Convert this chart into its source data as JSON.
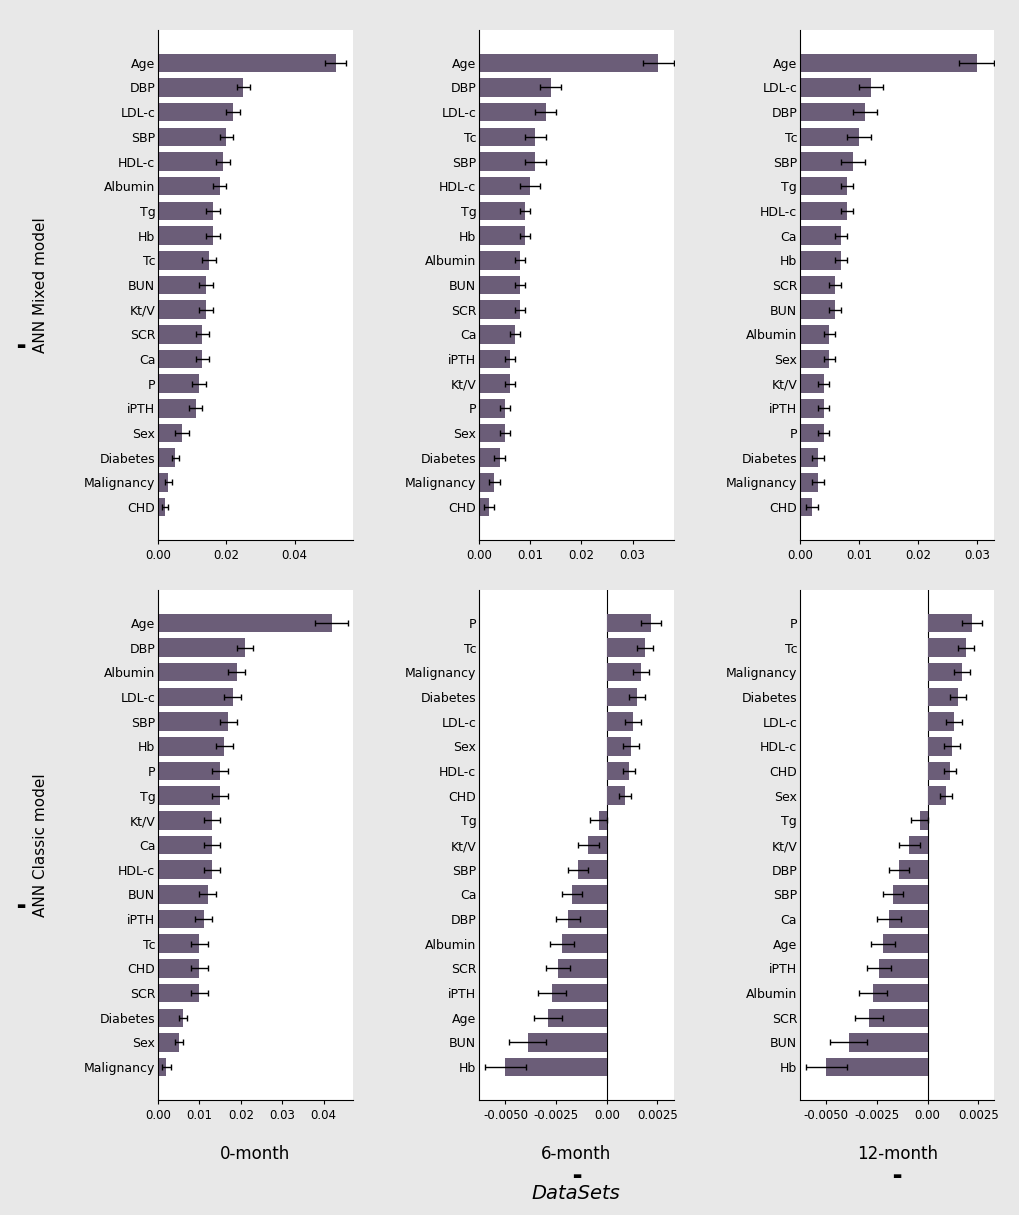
{
  "bar_color": "#6b5d78",
  "fig_bg": "#e8e8e8",
  "subplot_bg": "#ffffff",
  "mixed_0month": {
    "labels": [
      "Age",
      "DBP",
      "LDL-c",
      "SBP",
      "HDL-c",
      "Albumin",
      "Tg",
      "Hb",
      "Tc",
      "BUN",
      "Kt/V",
      "SCR",
      "Ca",
      "P",
      "iPTH",
      "Sex",
      "Diabetes",
      "Malignancy",
      "CHD"
    ],
    "values": [
      0.052,
      0.025,
      0.022,
      0.02,
      0.019,
      0.018,
      0.016,
      0.016,
      0.015,
      0.014,
      0.014,
      0.013,
      0.013,
      0.012,
      0.011,
      0.007,
      0.005,
      0.003,
      0.002
    ],
    "errors": [
      0.003,
      0.002,
      0.002,
      0.002,
      0.002,
      0.002,
      0.002,
      0.002,
      0.002,
      0.002,
      0.002,
      0.002,
      0.002,
      0.002,
      0.002,
      0.002,
      0.001,
      0.001,
      0.001
    ],
    "xlim": [
      0.0,
      0.057
    ],
    "xticks": [
      0.0,
      0.02,
      0.04
    ]
  },
  "mixed_6month": {
    "labels": [
      "Age",
      "DBP",
      "LDL-c",
      "Tc",
      "SBP",
      "HDL-c",
      "Tg",
      "Hb",
      "Albumin",
      "BUN",
      "SCR",
      "Ca",
      "iPTH",
      "Kt/V",
      "P",
      "Sex",
      "Diabetes",
      "Malignancy",
      "CHD"
    ],
    "values": [
      0.035,
      0.014,
      0.013,
      0.011,
      0.011,
      0.01,
      0.009,
      0.009,
      0.008,
      0.008,
      0.008,
      0.007,
      0.006,
      0.006,
      0.005,
      0.005,
      0.004,
      0.003,
      0.002
    ],
    "errors": [
      0.003,
      0.002,
      0.002,
      0.002,
      0.002,
      0.002,
      0.001,
      0.001,
      0.001,
      0.001,
      0.001,
      0.001,
      0.001,
      0.001,
      0.001,
      0.001,
      0.001,
      0.001,
      0.001
    ],
    "xlim": [
      0.0,
      0.038
    ],
    "xticks": [
      0.0,
      0.01,
      0.02,
      0.03
    ]
  },
  "mixed_12month": {
    "labels": [
      "Age",
      "LDL-c",
      "DBP",
      "Tc",
      "SBP",
      "Tg",
      "HDL-c",
      "Ca",
      "Hb",
      "SCR",
      "BUN",
      "Albumin",
      "Sex",
      "Kt/V",
      "iPTH",
      "P",
      "Diabetes",
      "Malignancy",
      "CHD"
    ],
    "values": [
      0.03,
      0.012,
      0.011,
      0.01,
      0.009,
      0.008,
      0.008,
      0.007,
      0.007,
      0.006,
      0.006,
      0.005,
      0.005,
      0.004,
      0.004,
      0.004,
      0.003,
      0.003,
      0.002
    ],
    "errors": [
      0.003,
      0.002,
      0.002,
      0.002,
      0.002,
      0.001,
      0.001,
      0.001,
      0.001,
      0.001,
      0.001,
      0.001,
      0.001,
      0.001,
      0.001,
      0.001,
      0.001,
      0.001,
      0.001
    ],
    "xlim": [
      0.0,
      0.033
    ],
    "xticks": [
      0.0,
      0.01,
      0.02,
      0.03
    ]
  },
  "classic_0month": {
    "labels": [
      "Age",
      "DBP",
      "Albumin",
      "LDL-c",
      "SBP",
      "Hb",
      "P",
      "Tg",
      "Kt/V",
      "Ca",
      "HDL-c",
      "BUN",
      "iPTH",
      "Tc",
      "CHD",
      "SCR",
      "Diabetes",
      "Sex",
      "Malignancy"
    ],
    "values": [
      0.042,
      0.021,
      0.019,
      0.018,
      0.017,
      0.016,
      0.015,
      0.015,
      0.013,
      0.013,
      0.013,
      0.012,
      0.011,
      0.01,
      0.01,
      0.01,
      0.006,
      0.005,
      0.002
    ],
    "errors": [
      0.004,
      0.002,
      0.002,
      0.002,
      0.002,
      0.002,
      0.002,
      0.002,
      0.002,
      0.002,
      0.002,
      0.002,
      0.002,
      0.002,
      0.002,
      0.002,
      0.001,
      0.001,
      0.001
    ],
    "xlim": [
      0.0,
      0.047
    ],
    "xticks": [
      0.0,
      0.01,
      0.02,
      0.03,
      0.04
    ]
  },
  "classic_6month": {
    "labels": [
      "P",
      "Tc",
      "Malignancy",
      "Diabetes",
      "LDL-c",
      "Sex",
      "HDL-c",
      "CHD",
      "Tg",
      "Kt/V",
      "SBP",
      "Ca",
      "DBP",
      "Albumin",
      "SCR",
      "iPTH",
      "Age",
      "BUN",
      "Hb"
    ],
    "values": [
      0.0022,
      0.0019,
      0.0017,
      0.0015,
      0.0013,
      0.0012,
      0.0011,
      0.0009,
      -0.0004,
      -0.0009,
      -0.0014,
      -0.0017,
      -0.0019,
      -0.0022,
      -0.0024,
      -0.0027,
      -0.0029,
      -0.0039,
      -0.005
    ],
    "errors": [
      0.0005,
      0.0004,
      0.0004,
      0.0004,
      0.0004,
      0.0004,
      0.0003,
      0.0003,
      0.0004,
      0.0005,
      0.0005,
      0.0005,
      0.0006,
      0.0006,
      0.0006,
      0.0007,
      0.0007,
      0.0009,
      0.001
    ],
    "xlim": [
      -0.0063,
      0.0033
    ],
    "xticks": [
      -0.005,
      -0.0025,
      0.0,
      0.0025
    ]
  },
  "classic_12month": {
    "labels": [
      "P",
      "Tc",
      "Malignancy",
      "Diabetes",
      "LDL-c",
      "HDL-c",
      "CHD",
      "Sex",
      "Tg",
      "Kt/V",
      "DBP",
      "SBP",
      "Ca",
      "Age",
      "iPTH",
      "Albumin",
      "SCR",
      "BUN",
      "Hb"
    ],
    "values": [
      0.0022,
      0.0019,
      0.0017,
      0.0015,
      0.0013,
      0.0012,
      0.0011,
      0.0009,
      -0.0004,
      -0.0009,
      -0.0014,
      -0.0017,
      -0.0019,
      -0.0022,
      -0.0024,
      -0.0027,
      -0.0029,
      -0.0039,
      -0.005
    ],
    "errors": [
      0.0005,
      0.0004,
      0.0004,
      0.0004,
      0.0004,
      0.0004,
      0.0003,
      0.0003,
      0.0004,
      0.0005,
      0.0005,
      0.0005,
      0.0006,
      0.0006,
      0.0006,
      0.0007,
      0.0007,
      0.0009,
      0.001
    ],
    "xlim": [
      -0.0063,
      0.0033
    ],
    "xticks": [
      -0.005,
      -0.0025,
      0.0,
      0.0025
    ]
  },
  "row_labels": [
    "ANN Mixed model",
    "ANN Classic model"
  ],
  "col_labels": [
    "0-month",
    "6-month",
    "12-month"
  ],
  "xlabel": "DataSets",
  "label_fontsize": 9,
  "tick_fontsize": 8.5,
  "col_label_fontsize": 12,
  "xlabel_fontsize": 14,
  "row_label_fontsize": 11
}
